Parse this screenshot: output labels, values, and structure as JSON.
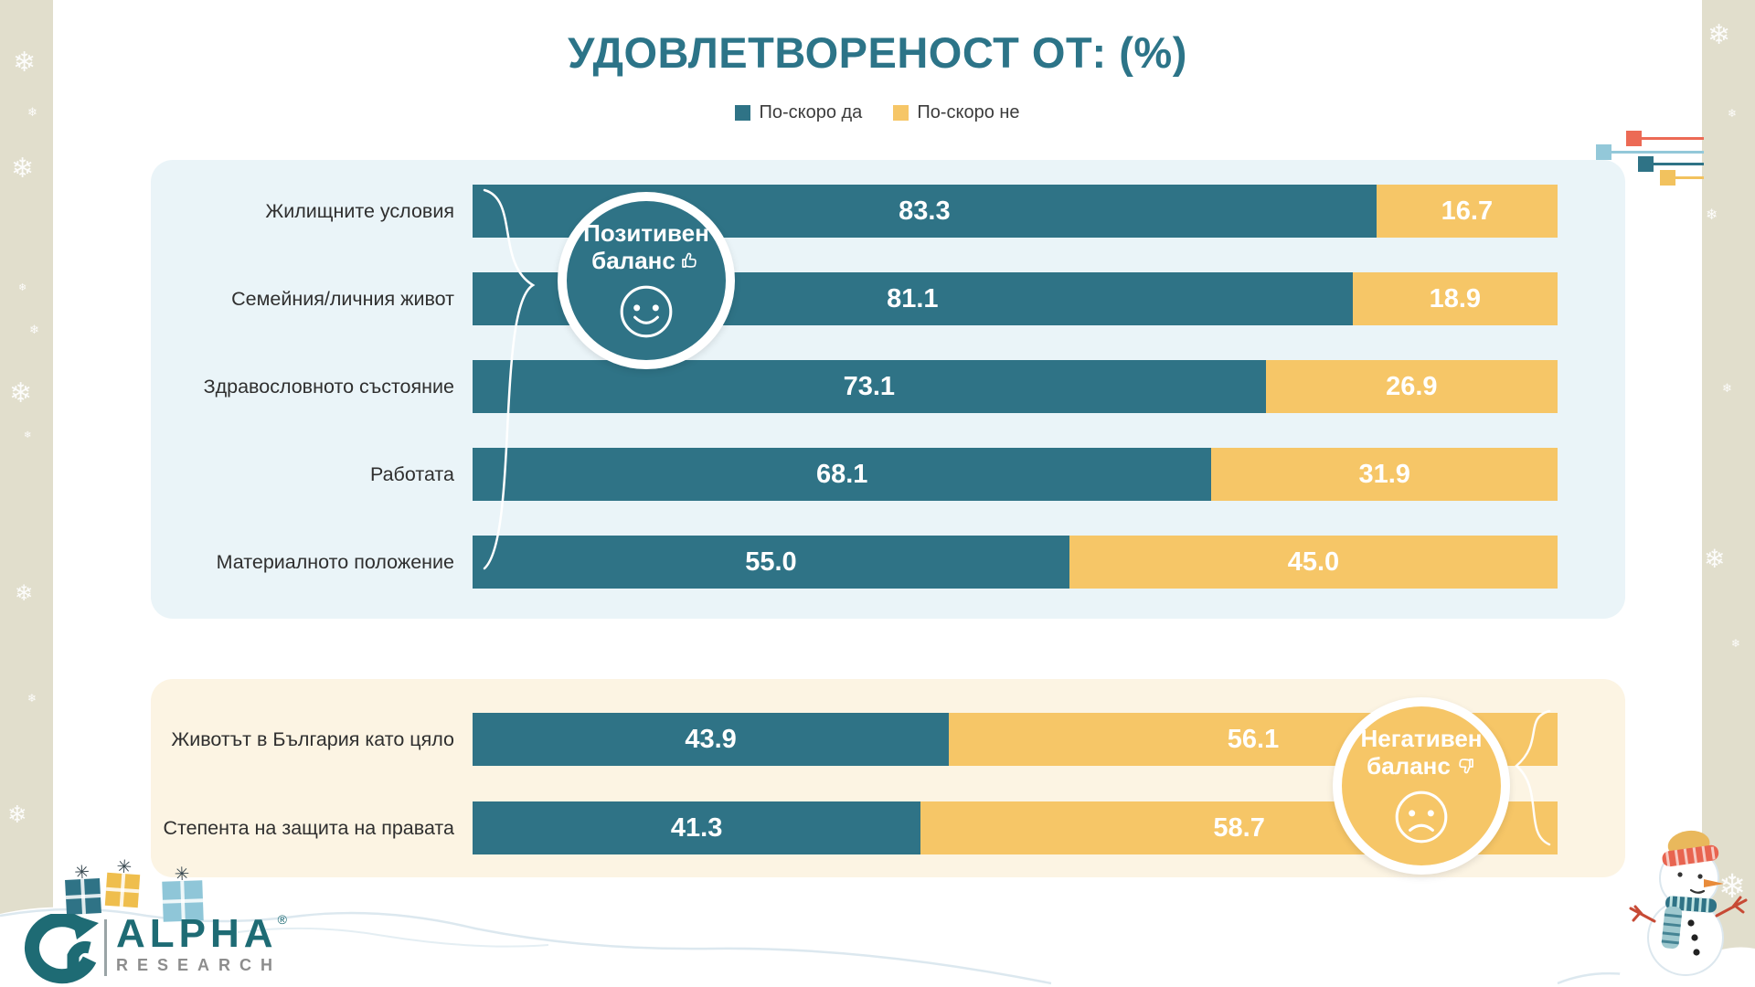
{
  "title": "УДОВЛЕТВОРЕНОСТ ОТ: (%)",
  "legend": {
    "items": [
      {
        "label": "По-скоро да",
        "color": "#2F7386"
      },
      {
        "label": "По-скоро не",
        "color": "#F6C667"
      }
    ]
  },
  "chart_data": {
    "type": "bar",
    "orientation": "horizontal",
    "stacked": true,
    "unit": "%",
    "x_range": [
      0,
      100
    ],
    "grid": false,
    "legend_position": "top",
    "groups": [
      {
        "name": "Позитивен баланс",
        "panel_color": "#EAF4F8",
        "badge": {
          "line1": "Позитивен",
          "line2": "баланс",
          "color": "#2F7386",
          "mood": "positive"
        },
        "categories": [
          "Жилищните условия",
          "Семейния/личния живот",
          "Здравословното състояние",
          "Работата",
          "Материалното положение"
        ],
        "series": [
          {
            "name": "По-скоро да",
            "color": "#2F7386",
            "values": [
              83.3,
              81.1,
              73.1,
              68.1,
              55.0
            ]
          },
          {
            "name": "По-скоро не",
            "color": "#F6C667",
            "values": [
              16.7,
              18.9,
              26.9,
              31.9,
              45.0
            ]
          }
        ]
      },
      {
        "name": "Негативен баланс",
        "panel_color": "#FCF4E3",
        "badge": {
          "line1": "Негативен",
          "line2": "баланс",
          "color": "#F6C667",
          "mood": "negative"
        },
        "categories": [
          "Животът в България като цяло",
          "Степента на защита на правата"
        ],
        "series": [
          {
            "name": "По-скоро да",
            "color": "#2F7386",
            "values": [
              43.9,
              41.3
            ]
          },
          {
            "name": "По-скоро не",
            "color": "#F6C667",
            "values": [
              56.1,
              58.7
            ]
          }
        ]
      }
    ]
  },
  "branding": {
    "alpha": "ALPHA",
    "research": "RESEARCH",
    "registered": "®"
  },
  "icons": {
    "snowflake": "❄",
    "ribbon": "✳"
  },
  "colors": {
    "title": "#2C7488",
    "bar_yes": "#2F7386",
    "bar_no": "#F6C667",
    "panel_top": "#EAF4F8",
    "panel_bottom": "#FCF4E3",
    "side_strip": "#E1DECC",
    "logo_teal": "#1E6B74",
    "logo_gray": "#8D8D8D"
  },
  "decorations": {
    "corner_squares": [
      "#EC6A55",
      "#93C8D9",
      "#2F7386",
      "#F2C25E"
    ],
    "gifts": [
      "#2F7386",
      "#EFBE4D",
      "#8FC6D8"
    ]
  }
}
